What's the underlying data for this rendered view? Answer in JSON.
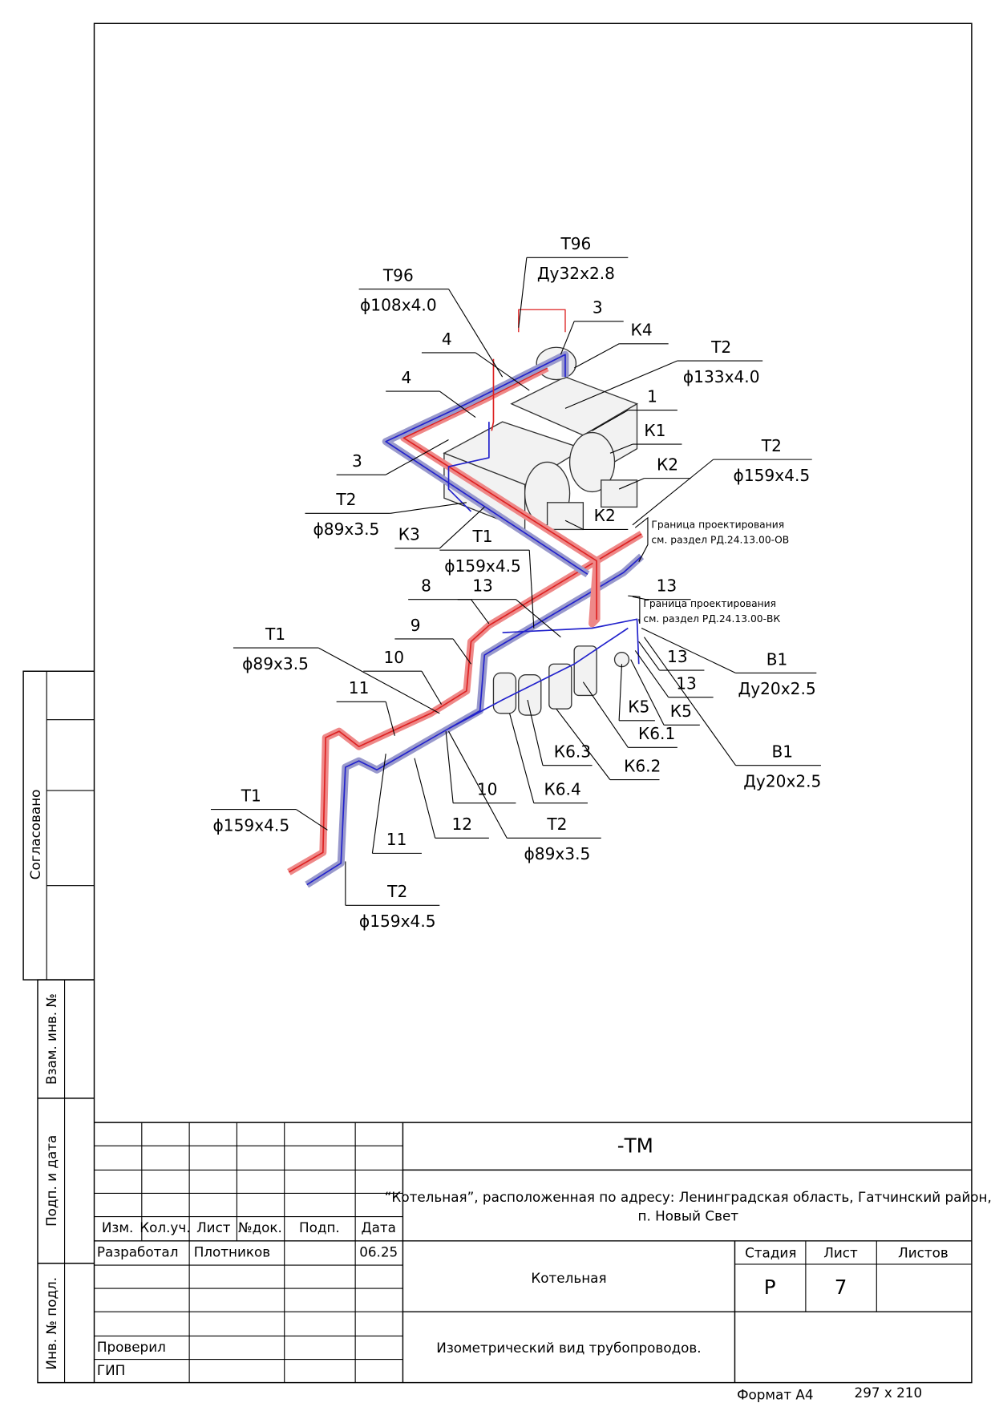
{
  "callouts": [
    {
      "mark": "Т96",
      "spec": "Ду32х2.8"
    },
    {
      "mark": "Т96",
      "spec": "ϕ108х4.0"
    },
    {
      "mark": "3"
    },
    {
      "mark": "К4"
    },
    {
      "mark": "Т2",
      "spec": "ϕ133х4.0"
    },
    {
      "mark": "4"
    },
    {
      "mark": "4"
    },
    {
      "mark": "1"
    },
    {
      "mark": "К1"
    },
    {
      "mark": "Т2",
      "spec": "ϕ159х4.5"
    },
    {
      "mark": "К2"
    },
    {
      "mark": "3"
    },
    {
      "mark": "Т2",
      "spec": "ϕ89х3.5"
    },
    {
      "mark": "К3"
    },
    {
      "mark": "К2"
    },
    {
      "mark": "Т1",
      "spec": "ϕ159х4.5"
    },
    {
      "mark": "8"
    },
    {
      "mark": "13"
    },
    {
      "mark": "13"
    },
    {
      "mark": "9"
    },
    {
      "mark": "Т1",
      "spec": "ϕ89х3.5"
    },
    {
      "mark": "10"
    },
    {
      "mark": "В1",
      "spec": "Ду20х2.5"
    },
    {
      "mark": "13"
    },
    {
      "mark": "11"
    },
    {
      "mark": "13"
    },
    {
      "mark": "К5"
    },
    {
      "mark": "К5"
    },
    {
      "mark": "К6.1"
    },
    {
      "mark": "В1",
      "spec": "Ду20х2.5"
    },
    {
      "mark": "К6.3"
    },
    {
      "mark": "К6.2"
    },
    {
      "mark": "10"
    },
    {
      "mark": "К6.4"
    },
    {
      "mark": "Т1",
      "spec": "ϕ159х4.5"
    },
    {
      "mark": "Т2",
      "spec": "ϕ89х3.5"
    },
    {
      "mark": "11"
    },
    {
      "mark": "12"
    },
    {
      "mark": "Т2",
      "spec": "ϕ159х4.5"
    }
  ],
  "boundary_notes": [
    [
      "Граница проектирования",
      "см. раздел РД.24.13.00-ОВ"
    ],
    [
      "Граница проектирования",
      "см. раздел РД.24.13.00-ВК"
    ]
  ],
  "side": {
    "agreed": "Согласовано",
    "replaced": "Взам. инв. №",
    "signature": "Подп. и дата",
    "inventory": "Инв. № подл."
  },
  "title_block": {
    "code": "-ТМ",
    "project": [
      "“Котельная”, расположенная по адресу: Ленинградская область, Гатчинский район,",
      "п. Новый Свет"
    ],
    "building": "Котельная",
    "sheet_title": "Изометрический вид трубопроводов.",
    "columns": [
      "Изм.",
      "Кол.уч.",
      "Лист",
      "№док.",
      "Подп.",
      "Дата"
    ],
    "developed": "Разработал",
    "developer": "Плотников",
    "date": "06.25",
    "checked": "Проверил",
    "chief": "ГИП",
    "stage_header": "Стадия",
    "sheet_header": "Лист",
    "sheets_header": "Листов",
    "stage": "Р",
    "sheet": "7"
  },
  "footer": {
    "format": "Формат А4",
    "size": "297 x 210"
  }
}
